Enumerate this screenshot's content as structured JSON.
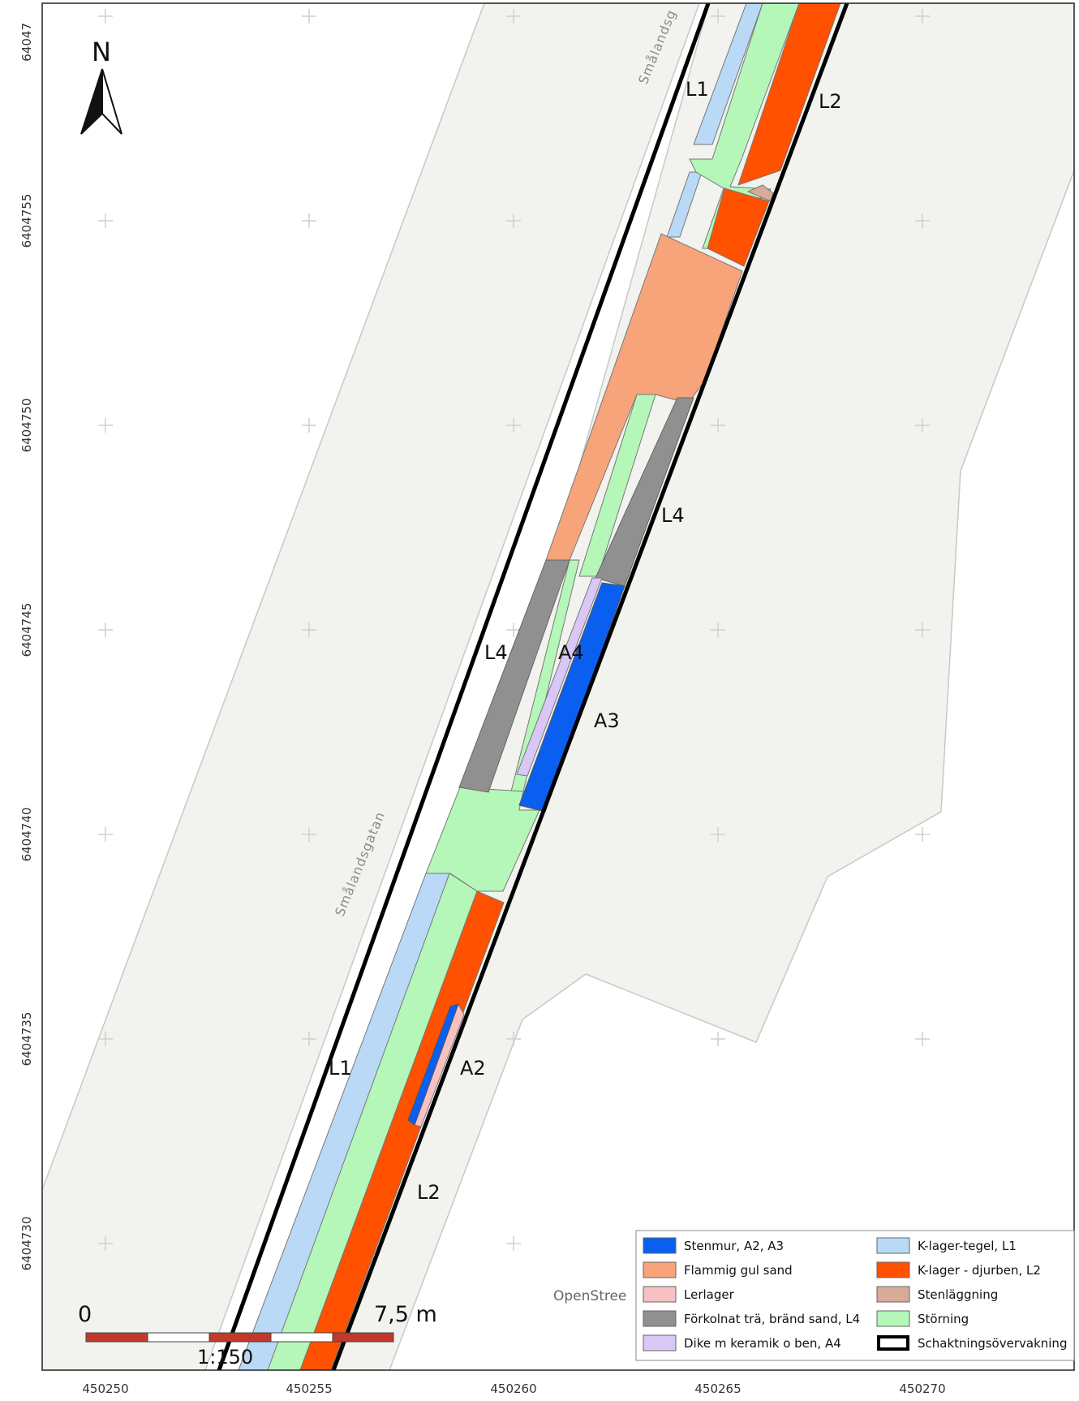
{
  "map": {
    "north_label": "N",
    "x_ticks": [
      "450250",
      "450255",
      "450260",
      "450265",
      "450270"
    ],
    "y_ticks": [
      "64047",
      "6404755",
      "6404750",
      "6404745",
      "6404740",
      "6404735",
      "6404730"
    ],
    "street_labels": [
      "Smålandsgatan",
      "Smålandsg"
    ],
    "attribution": "OpenStree",
    "scale": {
      "left_label": "0",
      "right_label": "7,5 m",
      "ratio_label": "1:150"
    },
    "feature_labels": {
      "l1_top": "L1",
      "l2_top": "L2",
      "l4_right": "L4",
      "l4_left": "L4",
      "a4": "A4",
      "a3": "A3",
      "l1_bottom": "L1",
      "a2": "A2",
      "l2_bottom": "L2"
    },
    "legend": [
      {
        "label": "Stenmur, A2, A3",
        "color": "#0a5ff0"
      },
      {
        "label": "K-lager-tegel, L1",
        "color": "#b9d9f6"
      },
      {
        "label": "Flammig gul sand",
        "color": "#f7a47b"
      },
      {
        "label": "K-lager - djurben, L2",
        "color": "#ff5100"
      },
      {
        "label": "Lerlager",
        "color": "#f7c0c2"
      },
      {
        "label": "Stenläggning",
        "color": "#d8aa98"
      },
      {
        "label": "Förkolnat trä, bränd sand, L4",
        "color": "#909090"
      },
      {
        "label": "Störning",
        "color": "#b5f7b8"
      },
      {
        "label": "Dike m keramik o ben, A4",
        "color": "#d8c7f7"
      },
      {
        "label": "Schaktningsövervakning",
        "color": "#000000"
      }
    ]
  },
  "colors": {
    "background": "#ffffff",
    "land": "#f2f2ee",
    "sidewalk_line": "#cccccc",
    "grid_cross": "#cfcfcf"
  }
}
